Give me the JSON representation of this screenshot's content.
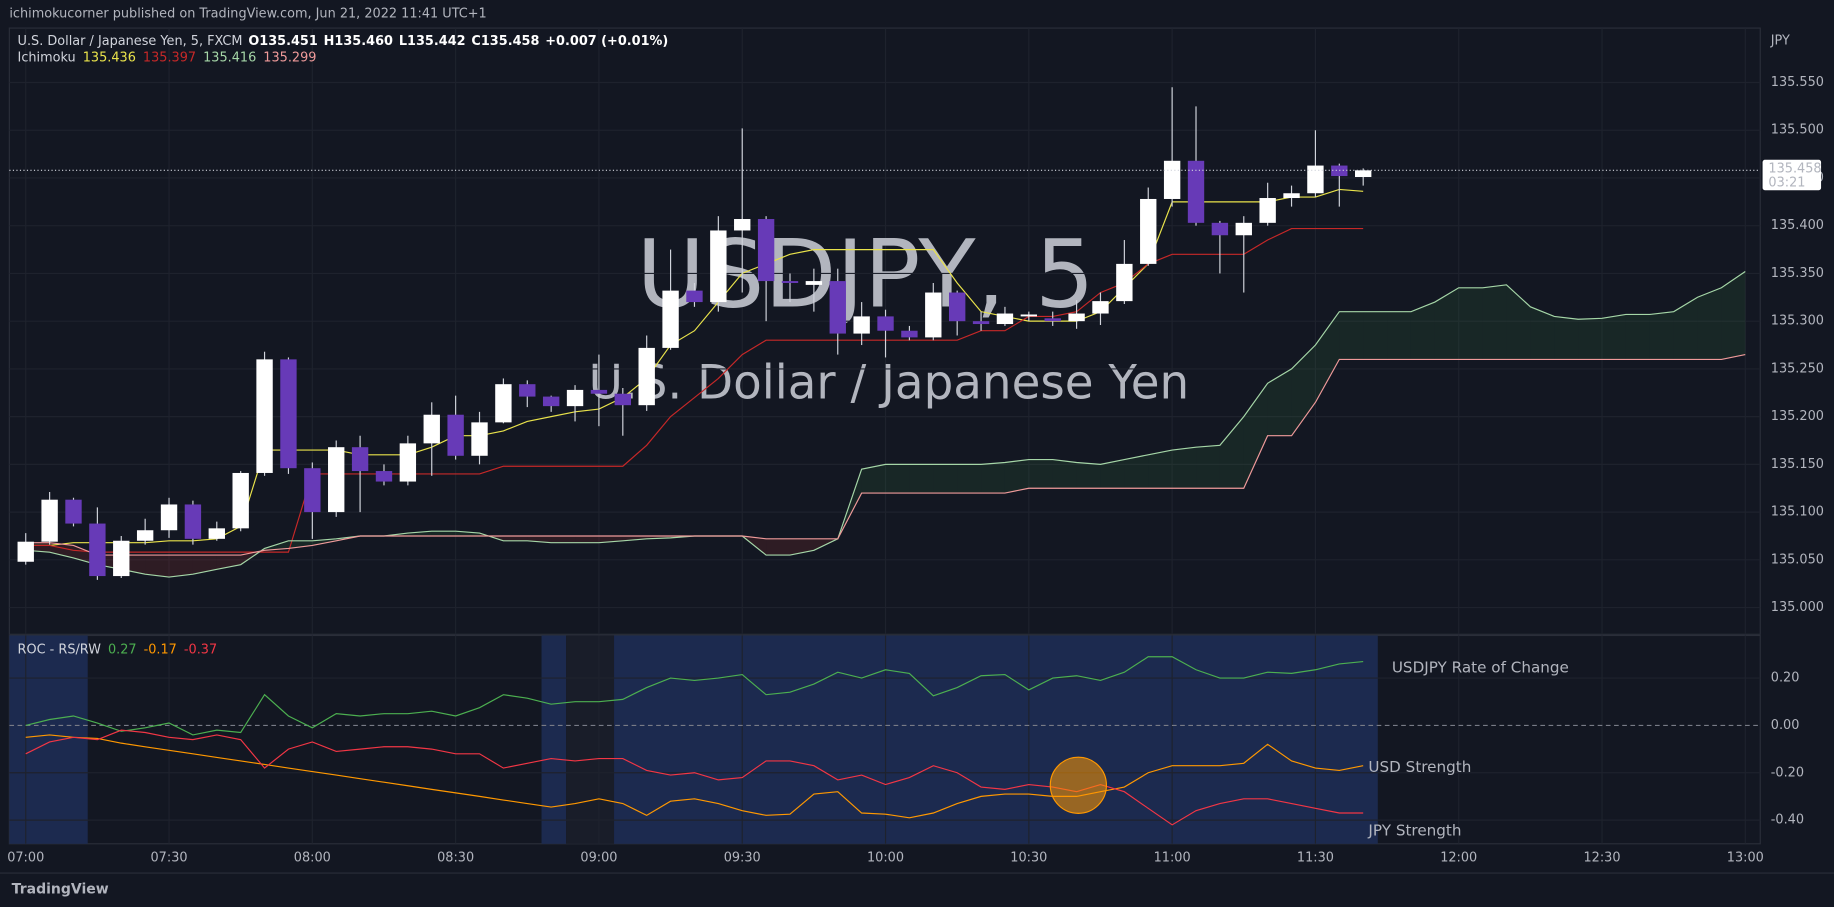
{
  "header": {
    "published": "ichimokucorner published on TradingView.com, Jun 21, 2022 11:41 UTC+1",
    "brand": "TradingView"
  },
  "chart_data": [
    {
      "type": "candlestick",
      "title": "U.S. Dollar / Japanese Yen, 5, FXCM",
      "legend": [
        "O135.451",
        "H135.460",
        "L135.442",
        "C135.458",
        "+0.007 (+0.01%)"
      ],
      "watermark": [
        "USDJPY, 5",
        "U.S. Dollar / Japanese Yen"
      ],
      "y_unit": "JPY",
      "countdown": "03:21",
      "up_color": "#ffffff",
      "down_color": "#673ab7",
      "wick_color": "#d1d4dc",
      "x": [
        "07:00",
        "07:05",
        "07:10",
        "07:15",
        "07:20",
        "07:25",
        "07:30",
        "07:35",
        "07:40",
        "07:45",
        "07:50",
        "07:55",
        "08:00",
        "08:05",
        "08:10",
        "08:15",
        "08:20",
        "08:25",
        "08:30",
        "08:35",
        "08:40",
        "08:45",
        "08:50",
        "08:55",
        "09:00",
        "09:05",
        "09:10",
        "09:15",
        "09:20",
        "09:25",
        "09:30",
        "09:35",
        "09:40",
        "09:45",
        "09:50",
        "09:55",
        "10:00",
        "10:05",
        "10:10",
        "10:15",
        "10:20",
        "10:25",
        "10:30",
        "10:35",
        "10:40",
        "10:45",
        "10:50",
        "10:55",
        "11:00",
        "11:05",
        "11:10",
        "11:15",
        "11:20",
        "11:25",
        "11:30",
        "11:35",
        "11:40",
        "11:45",
        "11:50",
        "11:55",
        "12:00",
        "12:05",
        "12:10",
        "12:15",
        "12:20",
        "12:25",
        "12:30",
        "12:35",
        "12:40",
        "12:45",
        "12:50",
        "12:55",
        "13:00"
      ],
      "xticks": [
        "07:00",
        "07:30",
        "08:00",
        "08:30",
        "09:00",
        "09:30",
        "10:00",
        "10:30",
        "11:00",
        "11:30",
        "12:00",
        "12:30",
        "13:00"
      ],
      "open": [
        135.048,
        135.069,
        135.113,
        135.088,
        135.033,
        135.07,
        135.081,
        135.108,
        135.072,
        135.083,
        135.141,
        135.26,
        135.146,
        135.1,
        135.168,
        135.143,
        135.132,
        135.172,
        135.202,
        135.159,
        135.194,
        135.234,
        135.221,
        135.211,
        135.228,
        135.224,
        135.212,
        135.272,
        135.332,
        135.32,
        135.395,
        135.407,
        135.342,
        135.338,
        135.342,
        135.287,
        135.305,
        135.29,
        135.283,
        135.33,
        135.3,
        135.297,
        135.305,
        135.303,
        135.3,
        135.308,
        135.321,
        135.36,
        135.428,
        135.468,
        135.403,
        135.39,
        135.403,
        135.429,
        135.434,
        135.463,
        135.451,
        null,
        null,
        null,
        null,
        null,
        null,
        null,
        null,
        null,
        null,
        null,
        null,
        null,
        null,
        null,
        null
      ],
      "high": [
        135.078,
        135.121,
        135.115,
        135.105,
        135.075,
        135.093,
        135.115,
        135.112,
        135.09,
        135.143,
        135.268,
        135.262,
        135.152,
        135.175,
        135.18,
        135.15,
        135.18,
        135.215,
        135.222,
        135.205,
        135.24,
        135.238,
        135.222,
        135.233,
        135.265,
        135.23,
        135.285,
        135.375,
        135.34,
        135.41,
        135.502,
        135.41,
        135.35,
        135.355,
        135.355,
        135.32,
        135.312,
        135.295,
        135.34,
        135.332,
        135.31,
        135.315,
        135.31,
        135.31,
        135.322,
        135.33,
        135.385,
        135.44,
        135.545,
        135.525,
        135.405,
        135.41,
        135.445,
        135.442,
        135.5,
        135.465,
        135.46,
        null,
        null,
        null,
        null,
        null,
        null,
        null,
        null,
        null,
        null,
        null,
        null,
        null,
        null,
        null,
        null
      ],
      "low": [
        135.045,
        135.066,
        135.085,
        135.029,
        135.031,
        135.066,
        135.073,
        135.066,
        135.07,
        135.08,
        135.138,
        135.14,
        135.072,
        135.095,
        135.1,
        135.128,
        135.128,
        135.138,
        135.155,
        135.15,
        135.193,
        135.21,
        135.205,
        135.195,
        135.19,
        135.18,
        135.206,
        135.27,
        135.315,
        135.31,
        135.33,
        135.3,
        135.32,
        135.31,
        135.265,
        135.275,
        135.262,
        135.28,
        135.28,
        135.285,
        135.29,
        135.295,
        135.3,
        135.295,
        135.292,
        135.296,
        135.318,
        135.358,
        135.42,
        135.4,
        135.35,
        135.33,
        135.4,
        135.42,
        135.43,
        135.42,
        135.442,
        null,
        null,
        null,
        null,
        null,
        null,
        null,
        null,
        null,
        null,
        null,
        null,
        null,
        null,
        null,
        null
      ],
      "close": [
        135.069,
        135.113,
        135.088,
        135.033,
        135.07,
        135.081,
        135.108,
        135.072,
        135.083,
        135.141,
        135.26,
        135.146,
        135.1,
        135.168,
        135.143,
        135.132,
        135.172,
        135.202,
        135.159,
        135.194,
        135.234,
        135.221,
        135.211,
        135.228,
        135.224,
        135.212,
        135.272,
        135.332,
        135.32,
        135.395,
        135.407,
        135.342,
        135.34,
        135.342,
        135.287,
        135.305,
        135.29,
        135.283,
        135.33,
        135.3,
        135.297,
        135.308,
        135.307,
        135.3,
        135.308,
        135.321,
        135.36,
        135.428,
        135.468,
        135.403,
        135.39,
        135.403,
        135.429,
        135.434,
        135.463,
        135.452,
        135.458,
        null,
        null,
        null,
        null,
        null,
        null,
        null,
        null,
        null,
        null,
        null,
        null,
        null,
        null,
        null,
        null
      ],
      "ichimoku": {
        "name": "Ichimoku",
        "legend_values": [
          135.436,
          135.397,
          135.416,
          135.299
        ],
        "cloud_up_color": "rgba(67,160,71,0.12)",
        "cloud_down_color": "rgba(244,67,54,0.12)",
        "series": [
          {
            "color": "#e9e34b",
            "values": [
              135.065,
              135.065,
              135.068,
              135.068,
              135.068,
              135.068,
              135.07,
              135.07,
              135.072,
              135.085,
              135.165,
              135.165,
              135.165,
              135.165,
              135.16,
              135.16,
              135.16,
              135.168,
              135.18,
              135.18,
              135.185,
              135.195,
              135.2,
              135.205,
              135.208,
              135.22,
              135.24,
              135.275,
              135.29,
              135.32,
              135.35,
              135.36,
              135.37,
              135.375,
              135.375,
              135.375,
              135.375,
              135.375,
              135.375,
              135.34,
              135.31,
              135.305,
              135.3,
              135.3,
              135.3,
              135.31,
              135.335,
              135.36,
              135.425,
              135.425,
              135.425,
              135.425,
              135.425,
              135.43,
              135.43,
              135.438,
              135.436,
              null,
              null,
              null,
              null,
              null,
              null,
              null,
              null,
              null,
              null,
              null,
              null,
              null,
              null,
              null,
              null
            ]
          },
          {
            "color": "#c62828",
            "values": [
              135.065,
              135.065,
              135.06,
              135.058,
              135.058,
              135.058,
              135.058,
              135.058,
              135.058,
              135.058,
              135.058,
              135.058,
              135.14,
              135.14,
              135.14,
              135.14,
              135.14,
              135.14,
              135.14,
              135.14,
              135.148,
              135.148,
              135.148,
              135.148,
              135.148,
              135.148,
              135.17,
              135.2,
              135.22,
              135.24,
              135.265,
              135.28,
              135.28,
              135.28,
              135.28,
              135.28,
              135.28,
              135.28,
              135.28,
              135.28,
              135.29,
              135.29,
              135.305,
              135.305,
              135.31,
              135.33,
              135.34,
              135.36,
              135.37,
              135.37,
              135.37,
              135.37,
              135.385,
              135.397,
              135.397,
              135.397,
              135.397,
              null,
              null,
              null,
              null,
              null,
              null,
              null,
              null,
              null,
              null,
              null,
              null,
              null,
              null,
              null,
              null
            ]
          },
          {
            "color": "#a5d6a7",
            "values": [
              135.06,
              135.058,
              135.052,
              135.045,
              135.04,
              135.035,
              135.032,
              135.035,
              135.04,
              135.045,
              135.062,
              135.07,
              135.07,
              135.072,
              135.075,
              135.075,
              135.078,
              135.08,
              135.08,
              135.078,
              135.07,
              135.07,
              135.068,
              135.068,
              135.068,
              135.07,
              135.072,
              135.073,
              135.075,
              135.075,
              135.075,
              135.055,
              135.055,
              135.06,
              135.072,
              135.145,
              135.15,
              135.15,
              135.15,
              135.15,
              135.15,
              135.152,
              135.155,
              135.155,
              135.152,
              135.15,
              135.155,
              135.16,
              135.165,
              135.168,
              135.17,
              135.2,
              135.235,
              135.25,
              135.275,
              135.31,
              135.31,
              135.31,
              135.31,
              135.32,
              135.335,
              135.335,
              135.338,
              135.315,
              135.305,
              135.302,
              135.303,
              135.307,
              135.307,
              135.31,
              135.325,
              135.335,
              135.352
            ]
          },
          {
            "color": "#ef9a9a",
            "values": [
              135.068,
              135.068,
              135.065,
              135.055,
              135.055,
              135.055,
              135.055,
              135.055,
              135.055,
              135.055,
              135.06,
              135.062,
              135.065,
              135.07,
              135.075,
              135.075,
              135.075,
              135.075,
              135.075,
              135.075,
              135.075,
              135.075,
              135.075,
              135.075,
              135.075,
              135.075,
              135.075,
              135.075,
              135.075,
              135.075,
              135.075,
              135.072,
              135.072,
              135.072,
              135.072,
              135.12,
              135.12,
              135.12,
              135.12,
              135.12,
              135.12,
              135.12,
              135.125,
              135.125,
              135.125,
              135.125,
              135.125,
              135.125,
              135.125,
              135.125,
              135.125,
              135.125,
              135.18,
              135.18,
              135.215,
              135.26,
              135.26,
              135.26,
              135.26,
              135.26,
              135.26,
              135.26,
              135.26,
              135.26,
              135.26,
              135.26,
              135.26,
              135.26,
              135.26,
              135.26,
              135.26,
              135.26,
              135.265
            ]
          }
        ]
      },
      "ylim": [
        134.972,
        135.607
      ],
      "yticks": [
        {
          "value": 135,
          "label": "135.000"
        },
        {
          "value": 135.05,
          "label": "135.050"
        },
        {
          "value": 135.1,
          "label": "135.100"
        },
        {
          "value": 135.15,
          "label": "135.150"
        },
        {
          "value": 135.2,
          "label": "135.200"
        },
        {
          "value": 135.25,
          "label": "135.250"
        },
        {
          "value": 135.3,
          "label": "135.300"
        },
        {
          "value": 135.35,
          "label": "135.350"
        },
        {
          "value": 135.4,
          "label": "135.400"
        },
        {
          "value": 135.45,
          "label": "135.450"
        },
        {
          "value": 135.5,
          "label": "135.500"
        },
        {
          "value": 135.55,
          "label": "135.550"
        }
      ],
      "grid": true
    },
    {
      "type": "line",
      "title": "ROC - RS/RW",
      "legend_values": [
        0.27,
        -0.17,
        -0.37
      ],
      "annotations": [
        "USDJPY Rate of Change",
        "USD Strength",
        "JPY Strength"
      ],
      "series": [
        {
          "color": "#4caf50",
          "values": [
            0,
            0.025,
            0.04,
            0.01,
            -0.025,
            -0.01,
            0.01,
            -0.04,
            -0.02,
            -0.03,
            0.13,
            0.04,
            -0.01,
            0.05,
            0.04,
            0.05,
            0.05,
            0.06,
            0.04,
            0.075,
            0.13,
            0.115,
            0.09,
            0.1,
            0.1,
            0.11,
            0.16,
            0.2,
            0.19,
            0.2,
            0.215,
            0.13,
            0.14,
            0.175,
            0.225,
            0.2,
            0.235,
            0.22,
            0.125,
            0.16,
            0.21,
            0.215,
            0.15,
            0.2,
            0.21,
            0.19,
            0.225,
            0.29,
            0.29,
            0.235,
            0.2,
            0.2,
            0.225,
            0.22,
            0.235,
            0.26,
            0.27
          ]
        },
        {
          "color": "#ff9800",
          "values": [
            -0.05,
            -0.04,
            -0.05,
            -0.055,
            -0.075,
            -0.09,
            -0.105,
            -0.12,
            -0.135,
            -0.15,
            -0.165,
            -0.18,
            -0.195,
            -0.21,
            -0.225,
            -0.24,
            -0.255,
            -0.27,
            -0.285,
            -0.3,
            -0.315,
            -0.33,
            -0.345,
            -0.33,
            -0.31,
            -0.33,
            -0.38,
            -0.32,
            -0.31,
            -0.33,
            -0.36,
            -0.38,
            -0.375,
            -0.29,
            -0.28,
            -0.37,
            -0.375,
            -0.39,
            -0.37,
            -0.33,
            -0.3,
            -0.29,
            -0.29,
            -0.3,
            -0.3,
            -0.28,
            -0.26,
            -0.2,
            -0.17,
            -0.17,
            -0.17,
            -0.16,
            -0.08,
            -0.15,
            -0.18,
            -0.19,
            -0.17
          ]
        },
        {
          "color": "#f23645",
          "values": [
            -0.12,
            -0.07,
            -0.05,
            -0.06,
            -0.02,
            -0.03,
            -0.05,
            -0.06,
            -0.04,
            -0.06,
            -0.18,
            -0.1,
            -0.07,
            -0.11,
            -0.1,
            -0.09,
            -0.09,
            -0.1,
            -0.12,
            -0.12,
            -0.18,
            -0.16,
            -0.14,
            -0.15,
            -0.14,
            -0.14,
            -0.19,
            -0.21,
            -0.2,
            -0.23,
            -0.22,
            -0.15,
            -0.15,
            -0.17,
            -0.23,
            -0.21,
            -0.25,
            -0.22,
            -0.17,
            -0.2,
            -0.26,
            -0.27,
            -0.25,
            -0.26,
            -0.28,
            -0.25,
            -0.28,
            -0.35,
            -0.42,
            -0.36,
            -0.33,
            -0.31,
            -0.31,
            -0.33,
            -0.35,
            -0.37,
            -0.37
          ]
        }
      ],
      "ylim": [
        -0.5,
        0.38
      ],
      "yticks": [
        {
          "value": 0.2,
          "label": "0.20"
        },
        {
          "value": 0,
          "label": "0.00"
        },
        {
          "value": -0.2,
          "label": "-0.20"
        },
        {
          "value": -0.4,
          "label": "-0.40"
        }
      ],
      "grid": true
    }
  ]
}
